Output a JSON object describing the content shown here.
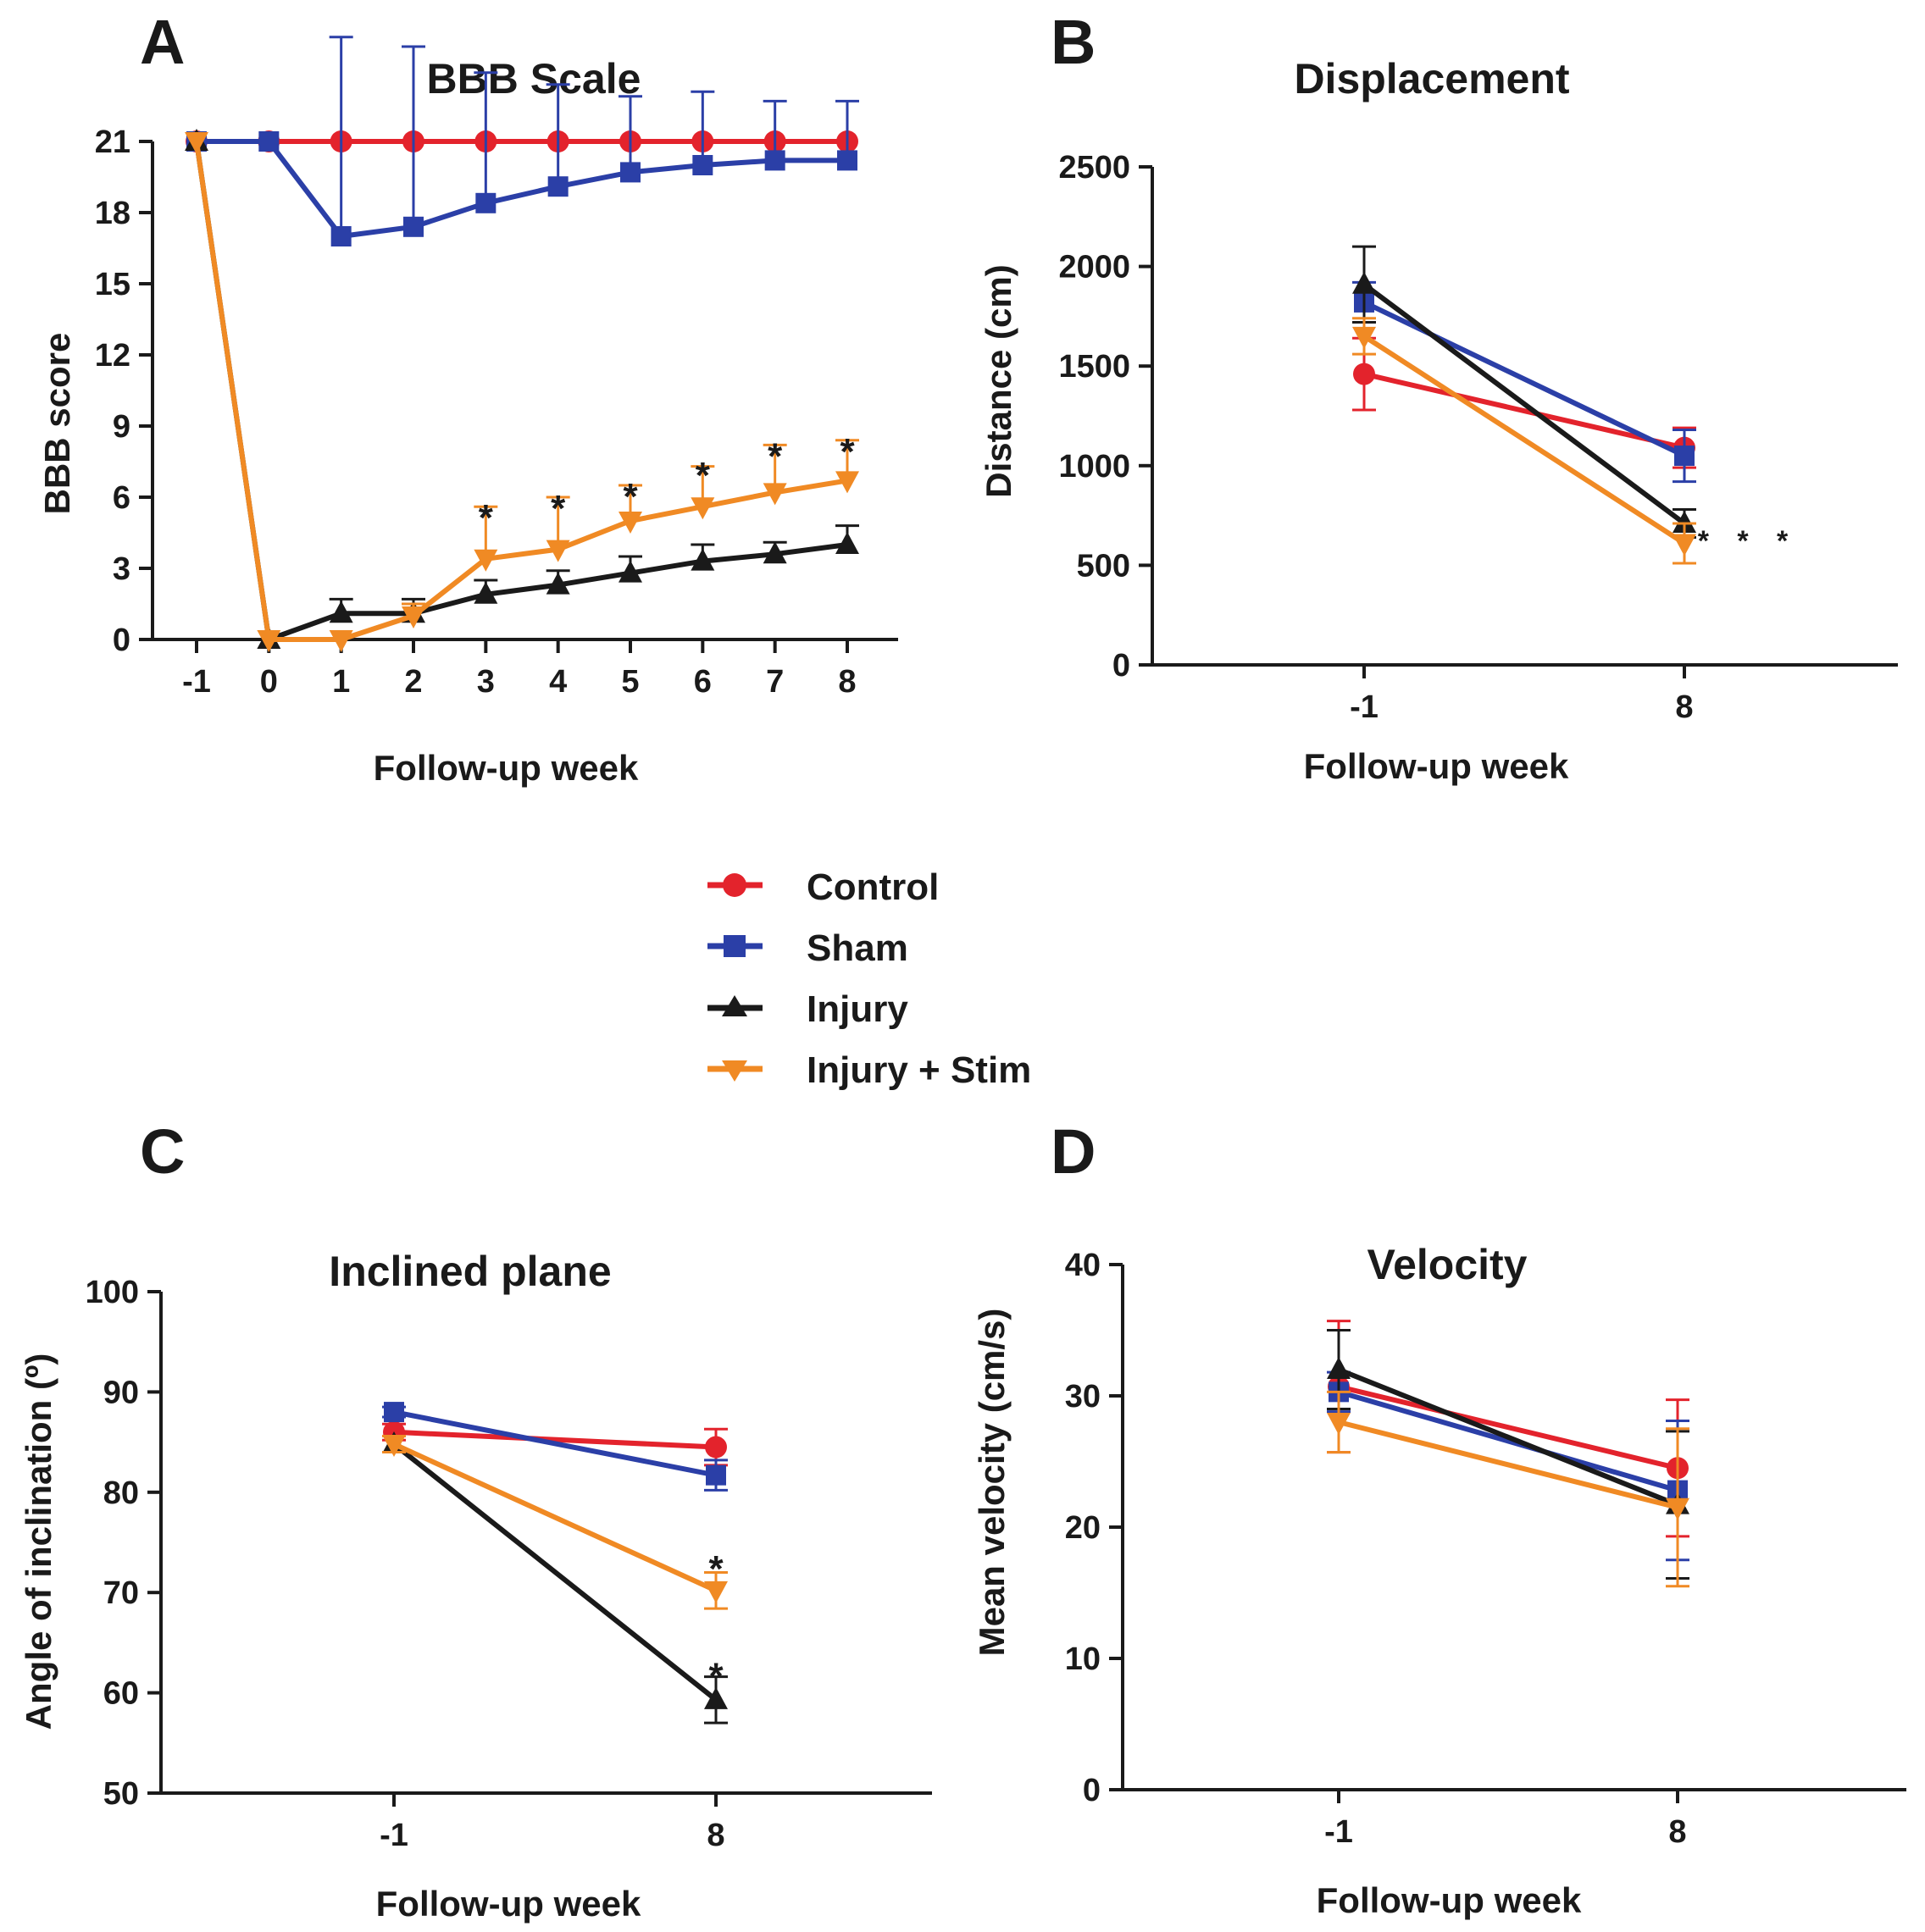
{
  "colors": {
    "Control": "#e3232c",
    "Sham": "#2b3fa7",
    "Injury": "#1a1a1a",
    "Injury + Stim": "#f08a24"
  },
  "legend": [
    "Control",
    "Sham",
    "Injury",
    "Injury + Stim"
  ],
  "chart_data": [
    {
      "panel": "A",
      "type": "line",
      "title": "BBB Scale",
      "xlabel": "Follow-up week",
      "ylabel": "BBB score",
      "x": [
        -1,
        0,
        1,
        2,
        3,
        4,
        5,
        6,
        7,
        8
      ],
      "xticks": [
        "-1",
        "0",
        "1",
        "2",
        "3",
        "4",
        "5",
        "6",
        "7",
        "8"
      ],
      "ylim": [
        0,
        21
      ],
      "yticks": [
        0,
        3,
        6,
        9,
        12,
        15,
        18,
        21
      ],
      "error_style": "up",
      "series": [
        {
          "name": "Control",
          "marker": "circle",
          "values": [
            21,
            21,
            21,
            21,
            21,
            21,
            21,
            21,
            21,
            21
          ],
          "errors": [
            0,
            0,
            0,
            0,
            0,
            0,
            0,
            0,
            0,
            0
          ]
        },
        {
          "name": "Sham",
          "marker": "square",
          "values": [
            21,
            21,
            17,
            17.4,
            18.4,
            19.1,
            19.7,
            20,
            20.2,
            20.2
          ],
          "errors": [
            0,
            0,
            8.4,
            7.6,
            5.5,
            4.3,
            3.2,
            3.1,
            2.5,
            2.5
          ]
        },
        {
          "name": "Injury",
          "marker": "triangle-up",
          "values": [
            21,
            0,
            1.1,
            1.1,
            1.9,
            2.3,
            2.8,
            3.3,
            3.6,
            4
          ],
          "errors": [
            0,
            0,
            0.6,
            0.6,
            0.6,
            0.6,
            0.7,
            0.7,
            0.5,
            0.8
          ]
        },
        {
          "name": "Injury + Stim",
          "marker": "triangle-down",
          "values": [
            21,
            0,
            0,
            1,
            3.4,
            3.8,
            5,
            5.6,
            6.2,
            6.7
          ],
          "errors": [
            0,
            0,
            0,
            0.5,
            2.2,
            2.2,
            1.5,
            1.7,
            2,
            1.7
          ]
        }
      ],
      "annotations": [
        {
          "x": 3,
          "y": 5.6,
          "text": "*"
        },
        {
          "x": 4,
          "y": 6,
          "text": "*"
        },
        {
          "x": 5,
          "y": 6.5,
          "text": "*"
        },
        {
          "x": 6,
          "y": 7.4,
          "text": "*"
        },
        {
          "x": 7,
          "y": 8.2,
          "text": "*"
        },
        {
          "x": 8,
          "y": 8.4,
          "text": "*"
        }
      ]
    },
    {
      "panel": "B",
      "type": "line",
      "title": "Displacement",
      "xlabel": "Follow-up week",
      "ylabel": "Distance (cm)",
      "categories": [
        "-1",
        "8"
      ],
      "ylim": [
        0,
        2500
      ],
      "yticks": [
        0,
        500,
        1000,
        1500,
        2000,
        2500
      ],
      "error_style": "both",
      "series": [
        {
          "name": "Control",
          "marker": "circle",
          "values": [
            1460,
            1090
          ],
          "errors": [
            180,
            100
          ]
        },
        {
          "name": "Sham",
          "marker": "square",
          "values": [
            1820,
            1050
          ],
          "errors": [
            100,
            130
          ]
        },
        {
          "name": "Injury",
          "marker": "triangle-up",
          "values": [
            1910,
            710
          ],
          "errors": [
            190,
            70
          ]
        },
        {
          "name": "Injury + Stim",
          "marker": "triangle-down",
          "values": [
            1650,
            610
          ],
          "errors": [
            90,
            100
          ]
        }
      ],
      "annotations": [
        {
          "x": "8",
          "y": 680,
          "text": "* * *",
          "offset": 1
        }
      ]
    },
    {
      "panel": "C",
      "type": "line",
      "title": "Inclined plane",
      "xlabel": "Follow-up week",
      "ylabel": "Angle of inclination (º)",
      "categories": [
        "-1",
        "8"
      ],
      "ylim": [
        50,
        100
      ],
      "yticks": [
        50,
        60,
        70,
        80,
        90,
        100
      ],
      "error_style": "both",
      "series": [
        {
          "name": "Control",
          "marker": "circle",
          "values": [
            86,
            84.5
          ],
          "errors": [
            0.8,
            1.8
          ]
        },
        {
          "name": "Sham",
          "marker": "square",
          "values": [
            88,
            81.7
          ],
          "errors": [
            0.5,
            1.5
          ]
        },
        {
          "name": "Injury",
          "marker": "triangle-up",
          "values": [
            84.8,
            59.3
          ],
          "errors": [
            0.8,
            2.3
          ]
        },
        {
          "name": "Injury + Stim",
          "marker": "triangle-down",
          "values": [
            84.8,
            70.2
          ],
          "errors": [
            0.8,
            1.8
          ]
        }
      ],
      "annotations": [
        {
          "x": "8",
          "y": 73.5,
          "text": "*"
        },
        {
          "x": "8",
          "y": 62.8,
          "text": "*"
        }
      ]
    },
    {
      "panel": "D",
      "type": "line",
      "title": "Velocity",
      "xlabel": "Follow-up week",
      "ylabel": "Mean velocity (cm/s)",
      "categories": [
        "-1",
        "8"
      ],
      "ylim": [
        0,
        40
      ],
      "yticks": [
        0,
        10,
        20,
        30,
        40
      ],
      "error_style": "both",
      "series": [
        {
          "name": "Control",
          "marker": "circle",
          "values": [
            30.7,
            24.5
          ],
          "errors": [
            5,
            5.2
          ]
        },
        {
          "name": "Sham",
          "marker": "square",
          "values": [
            30.3,
            22.8
          ],
          "errors": [
            1.5,
            5.3
          ]
        },
        {
          "name": "Injury",
          "marker": "triangle-up",
          "values": [
            32,
            21.7
          ],
          "errors": [
            3,
            5.6
          ]
        },
        {
          "name": "Injury + Stim",
          "marker": "triangle-down",
          "values": [
            28,
            21.5
          ],
          "errors": [
            2.3,
            6
          ]
        }
      ],
      "annotations": []
    }
  ]
}
